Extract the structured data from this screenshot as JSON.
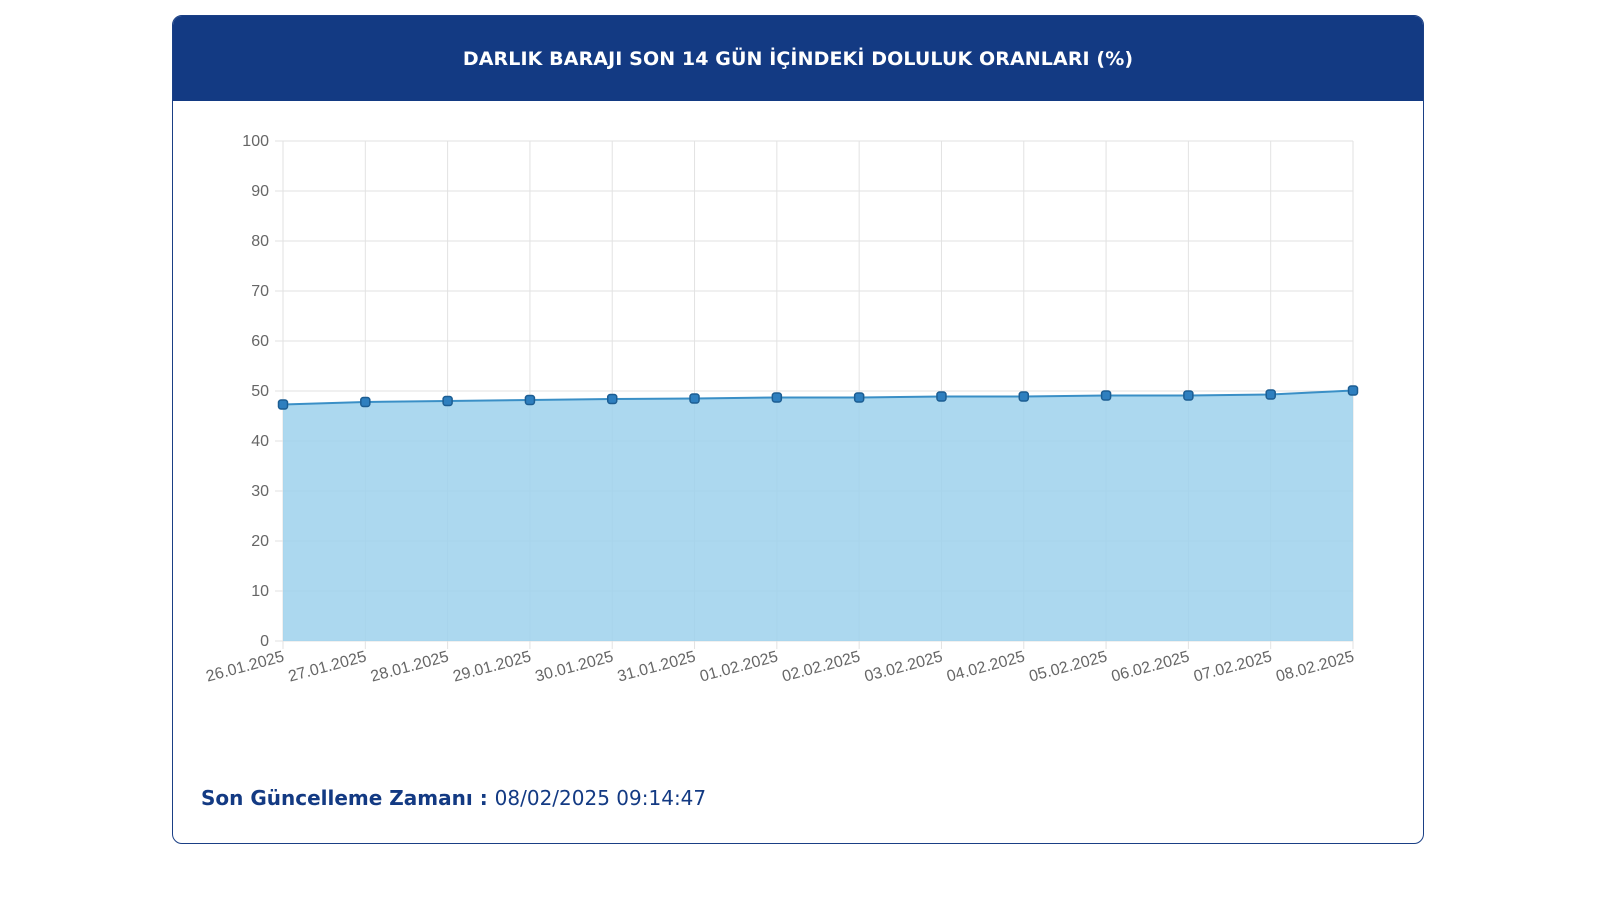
{
  "header": {
    "title": "DARLIK BARAJI SON 14 GÜN İÇİNDEKİ DOLULUK ORANLARI (%)"
  },
  "footer": {
    "label": "Son Güncelleme Zamanı",
    "separator": " : ",
    "value": "08/02/2025 09:14:47"
  },
  "colors": {
    "header_bg": "#133a83",
    "line": "#3a8fc6",
    "fill": "#9dd1ec",
    "grid": "#e2e2e2"
  },
  "chart_data": {
    "type": "area",
    "categories": [
      "26.01.2025",
      "27.01.2025",
      "28.01.2025",
      "29.01.2025",
      "30.01.2025",
      "31.01.2025",
      "01.02.2025",
      "02.02.2025",
      "03.02.2025",
      "04.02.2025",
      "05.02.2025",
      "06.02.2025",
      "07.02.2025",
      "08.02.2025"
    ],
    "series": [
      {
        "values": [
          47.3,
          47.8,
          48.0,
          48.2,
          48.4,
          48.5,
          48.7,
          48.7,
          48.9,
          48.9,
          49.1,
          49.1,
          49.3,
          50.1
        ]
      }
    ],
    "ylim": [
      0,
      100
    ],
    "yticks": [
      0,
      10,
      20,
      30,
      40,
      50,
      60,
      70,
      80,
      90,
      100
    ],
    "grid": true,
    "legend": "none"
  }
}
